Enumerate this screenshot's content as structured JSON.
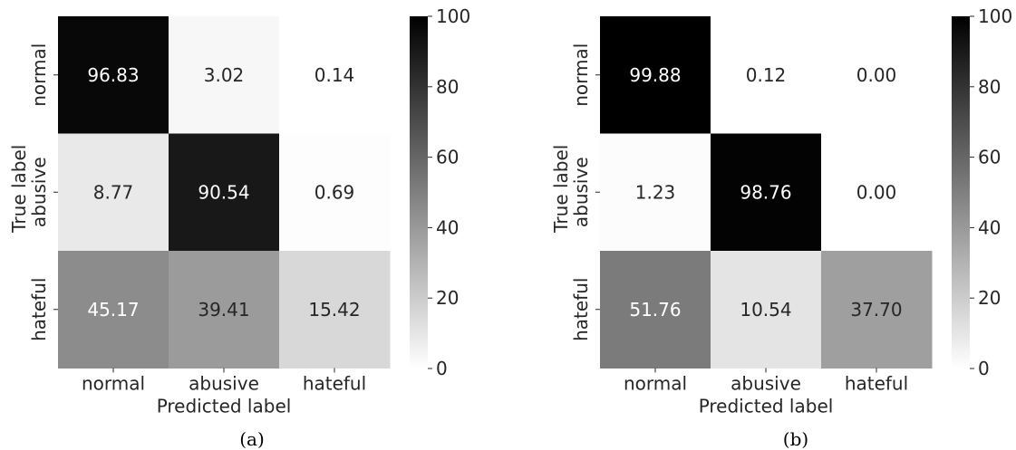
{
  "chart_data": [
    {
      "type": "heatmap",
      "panel_label": "(a)",
      "xlabel": "Predicted label",
      "ylabel": "True label",
      "x_categories": [
        "normal",
        "abusive",
        "hateful"
      ],
      "y_categories": [
        "normal",
        "abusive",
        "hateful"
      ],
      "values": [
        [
          96.83,
          3.02,
          0.14
        ],
        [
          8.77,
          90.54,
          0.69
        ],
        [
          45.17,
          39.41,
          15.42
        ]
      ],
      "value_labels": [
        [
          "96.83",
          "3.02",
          "0.14"
        ],
        [
          "8.77",
          "90.54",
          "0.69"
        ],
        [
          "45.17",
          "39.41",
          "15.42"
        ]
      ],
      "colorbar": {
        "min": 0,
        "max": 100,
        "ticks": [
          "0",
          "20",
          "40",
          "60",
          "80",
          "100"
        ]
      },
      "colormap": [
        "#ffffff",
        "#000000"
      ],
      "grid": false
    },
    {
      "type": "heatmap",
      "panel_label": "(b)",
      "xlabel": "Predicted label",
      "ylabel": "True label",
      "x_categories": [
        "normal",
        "abusive",
        "hateful"
      ],
      "y_categories": [
        "normal",
        "abusive",
        "hateful"
      ],
      "values": [
        [
          99.88,
          0.12,
          0.0
        ],
        [
          1.23,
          98.76,
          0.0
        ],
        [
          51.76,
          10.54,
          37.7
        ]
      ],
      "value_labels": [
        [
          "99.88",
          "0.12",
          "0.00"
        ],
        [
          "1.23",
          "98.76",
          "0.00"
        ],
        [
          "51.76",
          "10.54",
          "37.70"
        ]
      ],
      "colorbar": {
        "min": 0,
        "max": 100,
        "ticks": [
          "0",
          "20",
          "40",
          "60",
          "80",
          "100"
        ]
      },
      "colormap": [
        "#ffffff",
        "#000000"
      ],
      "grid": false
    }
  ]
}
